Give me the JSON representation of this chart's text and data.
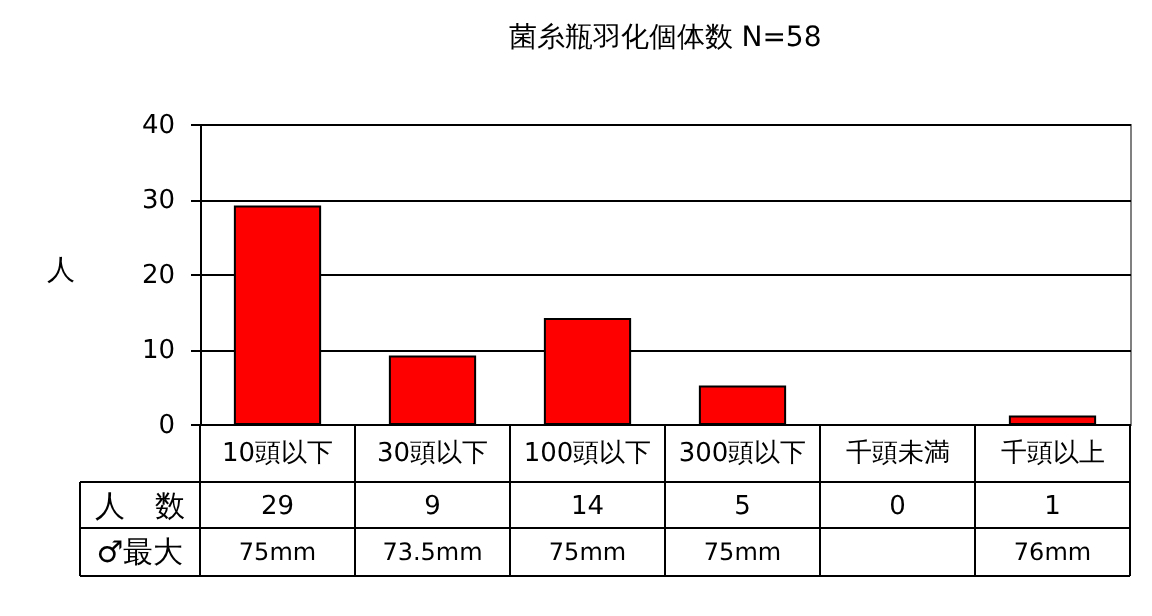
{
  "chart_data": {
    "type": "bar",
    "title": "菌糸瓶羽化個体数 N=58",
    "ylabel": "人",
    "categories": [
      "10頭以下",
      "30頭以下",
      "100頭以下",
      "300頭以下",
      "千頭未満",
      "千頭以上"
    ],
    "values": [
      29,
      9,
      14,
      5,
      0,
      1
    ],
    "color": "#ff0000",
    "ylim": [
      0,
      40
    ],
    "yticks": [
      0,
      10,
      20,
      30,
      40
    ],
    "grid": "y",
    "data_labels": true,
    "annotations": [
      "人　数",
      "♂最大",
      "75mm",
      "73.5mm",
      "75mm",
      "75mm",
      "76mm"
    ]
  }
}
